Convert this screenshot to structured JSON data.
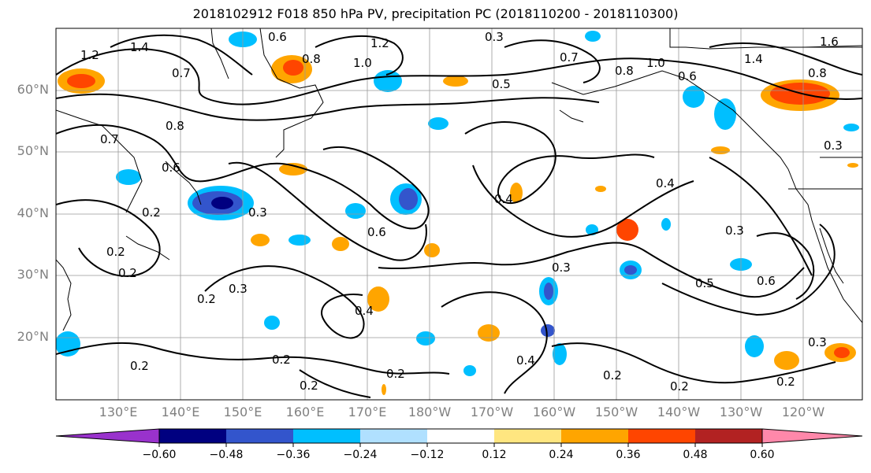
{
  "title": "2018102912 F018 850 hPa PV, precipitation PC (2018110200 - 2018110300)",
  "map": {
    "lat_labels": [
      "60°N",
      "50°N",
      "40°N",
      "30°N",
      "20°N"
    ],
    "lon_labels": [
      "130°E",
      "140°E",
      "150°E",
      "160°E",
      "170°E",
      "180°W",
      "170°W",
      "160°W",
      "150°W",
      "140°W",
      "130°W",
      "120°W"
    ],
    "contour_labels": [
      "1.2",
      "1.4",
      "0.7",
      "0.6",
      "0.8",
      "1.0",
      "1.2",
      "0.3",
      "0.7",
      "0.8",
      "0.5",
      "1.0",
      "0.6",
      "1.6",
      "1.4",
      "0.8",
      "0.7",
      "0.8",
      "0.6",
      "0.2",
      "0.3",
      "0.6",
      "0.4",
      "0.4",
      "0.3",
      "0.2",
      "0.2",
      "0.3",
      "0.4",
      "0.3",
      "0.5",
      "0.6",
      "0.2",
      "0.3",
      "0.2",
      "0.2",
      "0.4",
      "0.2",
      "0.2",
      "0.2",
      "0.2",
      "0.2",
      "0.3"
    ]
  },
  "colorbar": {
    "tick_labels": [
      "−0.60",
      "−0.48",
      "−0.36",
      "−0.24",
      "−0.12",
      "0.12",
      "0.24",
      "0.36",
      "0.48",
      "0.60"
    ],
    "colors": [
      "#9932cc",
      "#000080",
      "#3355cc",
      "#00bfff",
      "#b0e0ff",
      "#ffffff",
      "#ffe680",
      "#ffa500",
      "#ff4500",
      "#b22222",
      "#ff88aa"
    ]
  }
}
